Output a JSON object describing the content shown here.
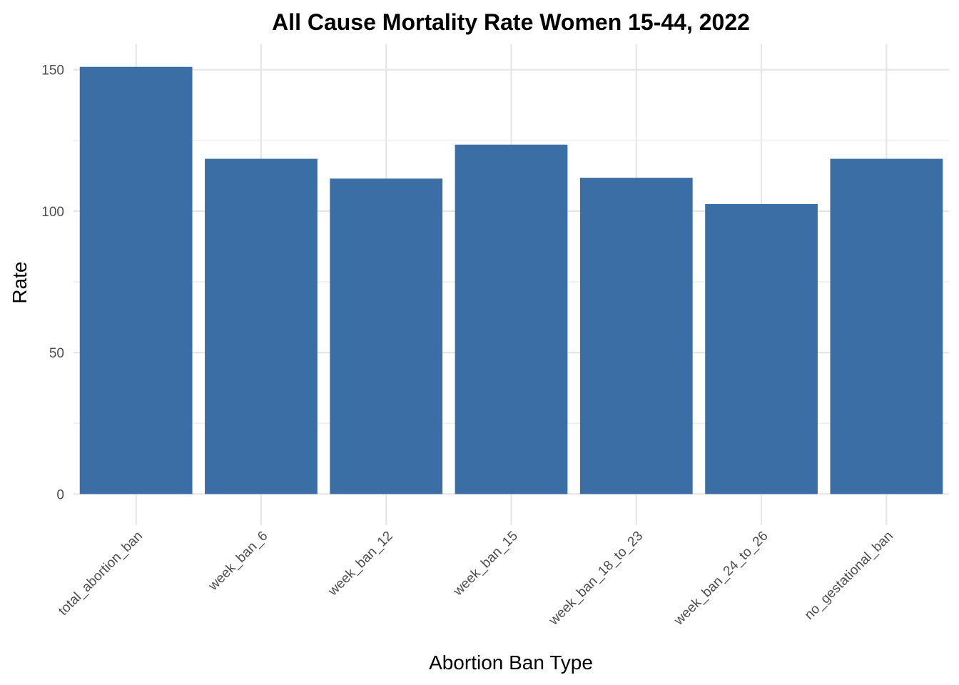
{
  "chart_data": {
    "type": "bar",
    "title": "All Cause Mortality Rate Women 15-44, 2022",
    "xlabel": "Abortion Ban Type",
    "ylabel": "Rate",
    "categories": [
      "total_abortion_ban",
      "week_ban_6",
      "week_ban_12",
      "week_ban_15",
      "week_ban_18_to_23",
      "week_ban_24_to_26",
      "no_gestational_ban"
    ],
    "values": [
      151.0,
      118.5,
      111.5,
      123.5,
      111.8,
      102.5,
      118.5
    ],
    "ylim": [
      -9,
      159
    ],
    "yticks": [
      0,
      50,
      100,
      150
    ],
    "ytick_labels": [
      "0",
      "50",
      "100",
      "150"
    ],
    "grid": true,
    "legend": "none",
    "bar_color": "#3A6EA5"
  }
}
